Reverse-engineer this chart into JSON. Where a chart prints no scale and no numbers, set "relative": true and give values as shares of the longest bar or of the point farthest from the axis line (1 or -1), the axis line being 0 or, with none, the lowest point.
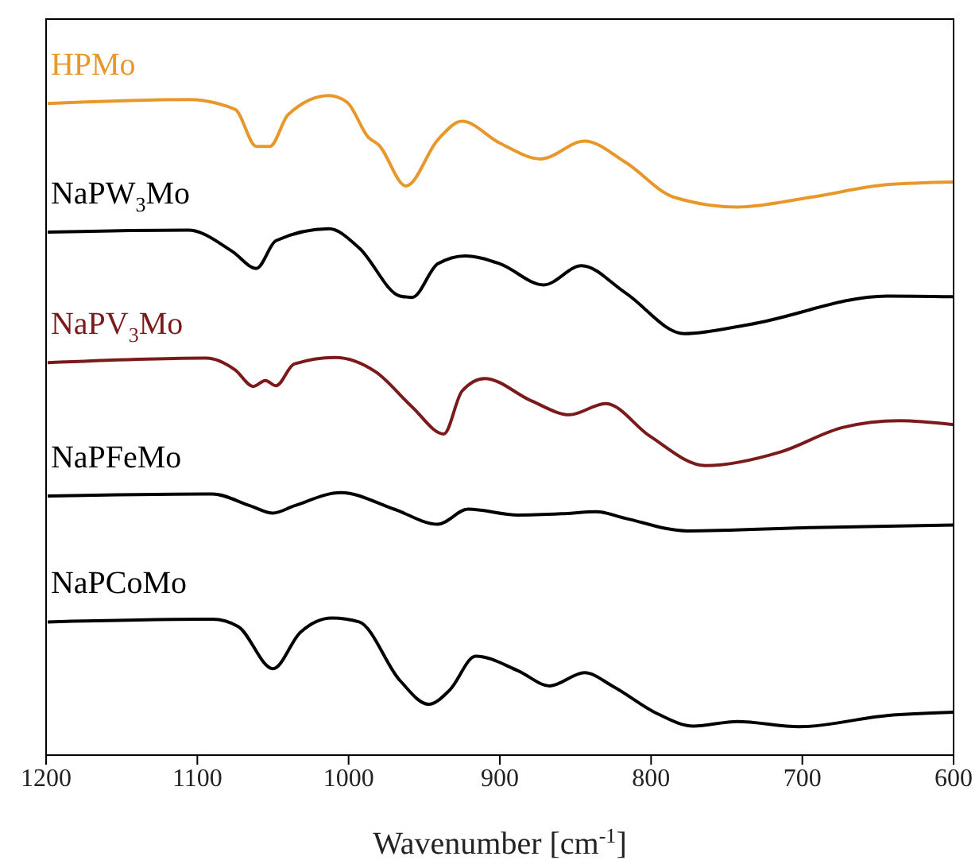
{
  "chart_data": {
    "type": "line",
    "relative": true,
    "xlabel": "Wavenumber [cm$^{-1}$]",
    "xlim": [
      1200,
      600
    ],
    "xticks": [
      1200,
      1100,
      1000,
      900,
      800,
      700,
      600
    ],
    "legend": false,
    "grid": false,
    "marker": "none",
    "line_style": "solid",
    "series": [
      {
        "name": "HPMo",
        "color": "#e8972a",
        "x": [
          1199,
          1106,
          1075,
          1061,
          1052,
          1040,
          1013,
          1001,
          987,
          980,
          962,
          941,
          925,
          900,
          873,
          844,
          817,
          785,
          743,
          694,
          644,
          600
        ],
        "values": [
          0.988,
          0.994,
          0.979,
          0.923,
          0.923,
          0.971,
          1,
          0.99,
          0.937,
          0.925,
          0.863,
          0.933,
          0.961,
          0.928,
          0.904,
          0.931,
          0.899,
          0.846,
          0.831,
          0.846,
          0.865,
          0.869
        ]
      },
      {
        "name": "NaPW$_{3}$Mo",
        "color": "#000000",
        "x": [
          1199,
          1106,
          1077,
          1061,
          1048,
          1013,
          993,
          966,
          958,
          941,
          923,
          900,
          871,
          846,
          817,
          778,
          735,
          644,
          600
        ],
        "values": [
          0.793,
          0.796,
          0.764,
          0.738,
          0.78,
          0.798,
          0.769,
          0.696,
          0.694,
          0.745,
          0.757,
          0.745,
          0.713,
          0.742,
          0.701,
          0.639,
          0.653,
          0.696,
          0.695
        ]
      },
      {
        "name": "NaPV$_{3}$Mo",
        "color": "#7b1a1a",
        "x": [
          1199,
          1094,
          1075,
          1063,
          1055,
          1048,
          1036,
          1009,
          982,
          958,
          937,
          925,
          910,
          879,
          854,
          830,
          801,
          764,
          714,
          673,
          636,
          600
        ],
        "values": [
          0.595,
          0.602,
          0.584,
          0.559,
          0.568,
          0.56,
          0.593,
          0.603,
          0.581,
          0.528,
          0.487,
          0.552,
          0.571,
          0.537,
          0.516,
          0.533,
          0.484,
          0.439,
          0.46,
          0.497,
          0.507,
          0.501
        ]
      },
      {
        "name": "NaPFeMo",
        "color": "#000000",
        "x": [
          1199,
          1090,
          1065,
          1050,
          1036,
          1005,
          970,
          941,
          921,
          888,
          859,
          836,
          817,
          776,
          694,
          600
        ],
        "values": [
          0.393,
          0.396,
          0.378,
          0.367,
          0.378,
          0.398,
          0.373,
          0.35,
          0.373,
          0.364,
          0.366,
          0.369,
          0.359,
          0.34,
          0.345,
          0.349
        ]
      },
      {
        "name": "NaPCoMo",
        "color": "#000000",
        "x": [
          1199,
          1090,
          1073,
          1050,
          1032,
          1011,
          993,
          966,
          947,
          933,
          916,
          888,
          867,
          844,
          825,
          796,
          772,
          743,
          702,
          644,
          600
        ],
        "values": [
          0.202,
          0.206,
          0.195,
          0.131,
          0.186,
          0.208,
          0.202,
          0.113,
          0.077,
          0.099,
          0.15,
          0.128,
          0.105,
          0.125,
          0.104,
          0.063,
          0.044,
          0.051,
          0.043,
          0.06,
          0.065
        ]
      }
    ]
  }
}
